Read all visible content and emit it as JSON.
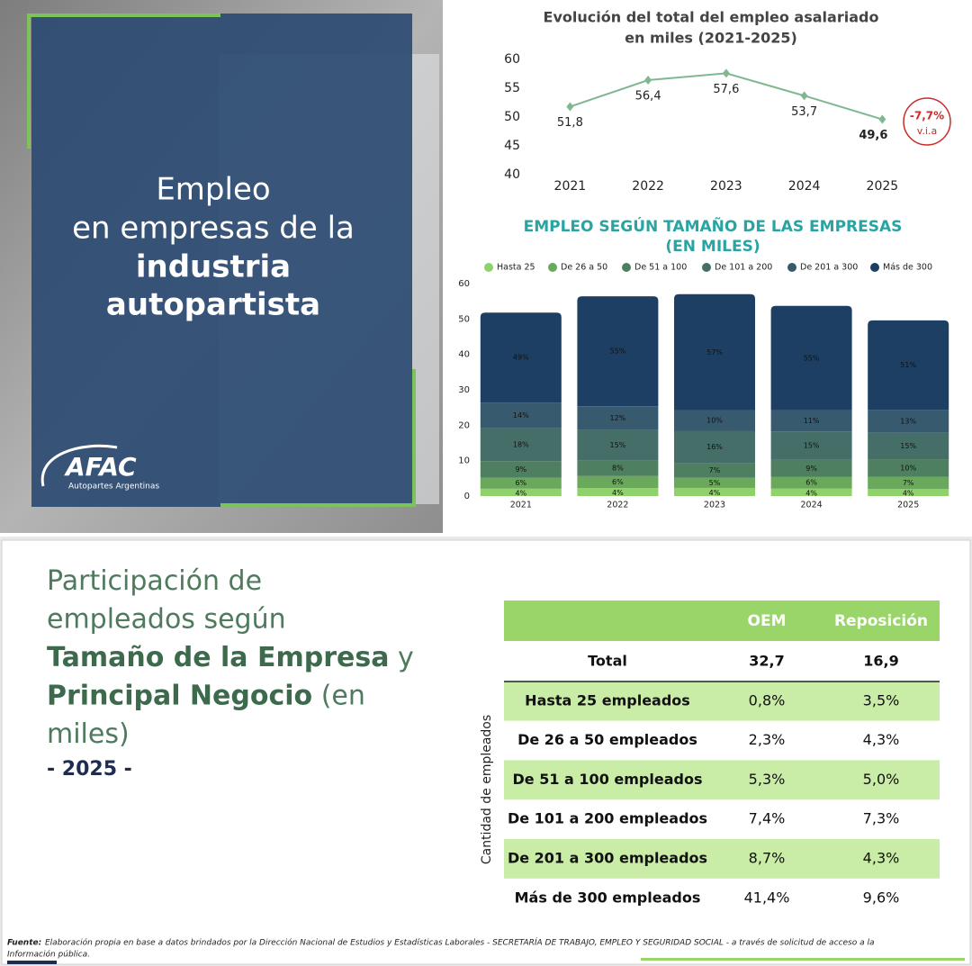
{
  "left_panel": {
    "title_lines": [
      "Empleo",
      "en empresas de la"
    ],
    "title_bold_lines": [
      "industria",
      "autopartista"
    ],
    "logo": "AFAC",
    "logo_sub": "Autopartes Argentinas"
  },
  "chart_data": [
    {
      "type": "line",
      "title": [
        "Evolución del total del empleo asalariado",
        "en miles (2021-2025)"
      ],
      "categories": [
        "2021",
        "2022",
        "2023",
        "2024",
        "2025"
      ],
      "values": [
        51.8,
        56.4,
        57.6,
        53.7,
        49.6
      ],
      "value_labels": [
        "51,8",
        "56,4",
        "57,6",
        "53,7",
        "49,6"
      ],
      "color": "#7fb88f",
      "ylim": [
        40,
        60
      ],
      "yticks": [
        40,
        45,
        50,
        55,
        60
      ],
      "annotation": [
        "-7,7%",
        "v.i.a"
      ],
      "annotation_color": "#cc2a2a"
    },
    {
      "type": "stacked-bar",
      "title": [
        "EMPLEO SEGÚN TAMAÑO DE LAS EMPRESAS",
        "(EN MILES)"
      ],
      "categories": [
        "2021",
        "2022",
        "2023",
        "2024",
        "2025"
      ],
      "ylim": [
        0,
        60
      ],
      "yticks": [
        0,
        10,
        20,
        30,
        40,
        50,
        60
      ],
      "legend": "top",
      "series": [
        {
          "name": "Hasta 25",
          "color": "#8fd16a",
          "values": [
            2.07,
            2.26,
            2.3,
            2.15,
            1.98
          ],
          "value_labels": [
            "4%",
            "4%",
            "4%",
            "4%",
            "4%"
          ]
        },
        {
          "name": "De 26 a 50",
          "color": "#6aa95c",
          "values": [
            3.11,
            3.38,
            2.88,
            3.22,
            3.47
          ],
          "value_labels": [
            "6%",
            "6%",
            "5%",
            "6%",
            "7%"
          ]
        },
        {
          "name": "De 51 a 100",
          "color": "#4f7f61",
          "values": [
            4.66,
            4.51,
            4.03,
            4.83,
            4.96
          ],
          "value_labels": [
            "9%",
            "8%",
            "7%",
            "9%",
            "10%"
          ]
        },
        {
          "name": "De 101 a 200",
          "color": "#456e69",
          "values": [
            9.32,
            8.46,
            9.22,
            8.06,
            7.44
          ],
          "value_labels": [
            "18%",
            "15%",
            "16%",
            "15%",
            "15%"
          ]
        },
        {
          "name": "De 201 a 300",
          "color": "#385a6e",
          "values": [
            7.25,
            6.77,
            5.76,
            5.91,
            6.45
          ],
          "value_labels": [
            "14%",
            "12%",
            "10%",
            "11%",
            "13%"
          ]
        },
        {
          "name": "Más de 300",
          "color": "#1d3f63",
          "values": [
            25.38,
            31.02,
            32.83,
            29.54,
            25.3
          ],
          "value_labels": [
            "49%",
            "55%",
            "57%",
            "55%",
            "51%"
          ]
        }
      ]
    }
  ],
  "heading": {
    "lines": [
      [
        {
          "text": "Participación de",
          "bold": false
        }
      ],
      [
        {
          "text": "empleados según",
          "bold": false
        }
      ],
      [
        {
          "text": "Tamaño de la Empresa",
          "bold": true
        },
        {
          "text": " y",
          "bold": false
        }
      ],
      [
        {
          "text": "Principal Negocio",
          "bold": true
        },
        {
          "text": " (en",
          "bold": false
        }
      ],
      [
        {
          "text": "miles)",
          "bold": false
        }
      ]
    ],
    "year": "- 2025 -"
  },
  "table": {
    "axis_label": "Cantidad de empleados",
    "header": [
      "OEM",
      "Reposición"
    ],
    "rows": [
      [
        "Total",
        "32,7",
        "16,9"
      ],
      [
        "Hasta 25 empleados",
        "0,8%",
        "3,5%"
      ],
      [
        "De 26 a 50 empleados",
        "2,3%",
        "4,3%"
      ],
      [
        "De 51 a 100 empleados",
        "5,3%",
        "5,0%"
      ],
      [
        "De 101 a 200 empleados",
        "7,4%",
        "7,3%"
      ],
      [
        "De 201 a 300 empleados",
        "8,7%",
        "4,3%"
      ],
      [
        "Más de 300 empleados",
        "41,4%",
        "9,6%"
      ]
    ]
  },
  "footer": {
    "label": "Fuente:",
    "text": "Elaboración propia en base a datos brindados por la Dirección Nacional de Estudios y Estadísticas Laborales - SECRETARÍA DE TRABAJO, EMPLEO Y SEGURIDAD SOCIAL - a través de solicitud de acceso a la",
    "text2": "Información pública."
  }
}
